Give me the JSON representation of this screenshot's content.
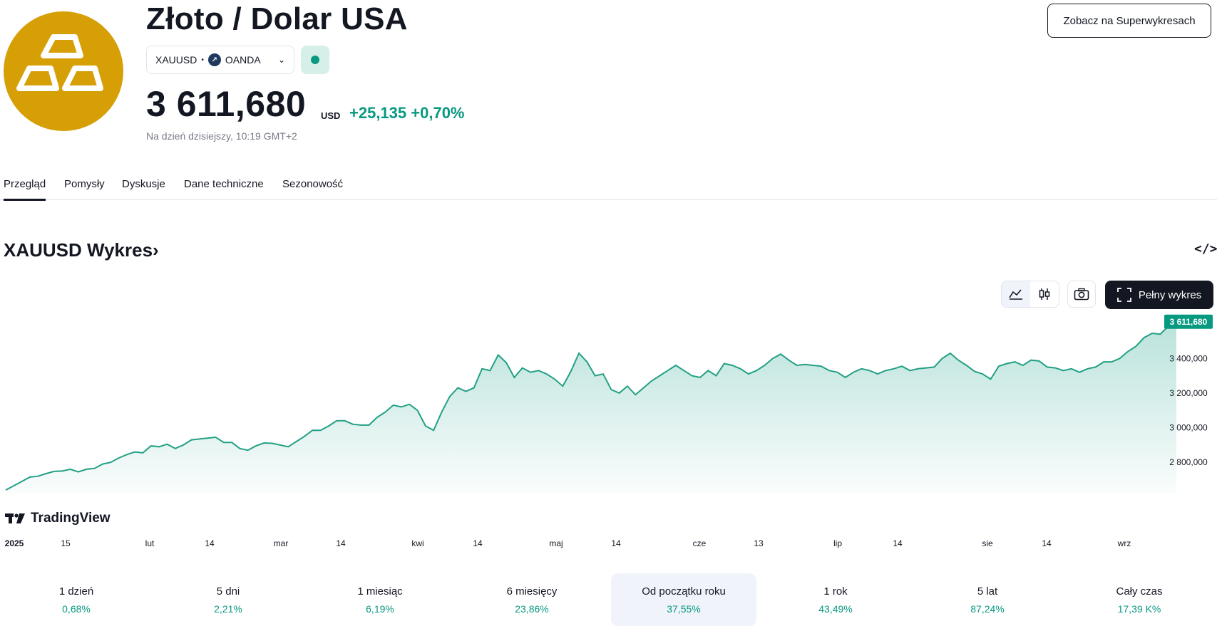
{
  "header": {
    "title": "Złoto / Dolar USA",
    "symbol": "XAUUSD",
    "exchange": "OANDA",
    "price": "3 611,680",
    "currency": "USD",
    "change": "+25,135",
    "change_pct": "+0,70%",
    "as_of": "Na dzień dzisiejszy, 10:19 GMT+2",
    "super_button": "Zobacz na Superwykresach"
  },
  "tabs": [
    {
      "label": "Przegląd",
      "active": true
    },
    {
      "label": "Pomysły",
      "active": false
    },
    {
      "label": "Dyskusje",
      "active": false
    },
    {
      "label": "Dane techniczne",
      "active": false
    },
    {
      "label": "Sezonowość",
      "active": false
    }
  ],
  "chart_section": {
    "title": "XAUUSD Wykres",
    "title_arrow": "›",
    "embed_icon": "</>",
    "full_chart_label": "Pełny wykres",
    "branding": "TradingView"
  },
  "chart_data": {
    "type": "area",
    "series": [
      {
        "values": [
          2640,
          2665,
          2690,
          2715,
          2720,
          2735,
          2748,
          2750,
          2760,
          2745,
          2760,
          2765,
          2790,
          2800,
          2825,
          2845,
          2860,
          2855,
          2895,
          2890,
          2905,
          2880,
          2900,
          2930,
          2935,
          2940,
          2945,
          2915,
          2915,
          2880,
          2870,
          2895,
          2912,
          2910,
          2900,
          2890,
          2920,
          2950,
          2985,
          2985,
          3010,
          3040,
          3040,
          3020,
          3015,
          3015,
          3060,
          3090,
          3130,
          3120,
          3135,
          3100,
          3010,
          2985,
          3090,
          3180,
          3230,
          3210,
          3230,
          3340,
          3330,
          3420,
          3375,
          3290,
          3345,
          3320,
          3330,
          3310,
          3280,
          3240,
          3325,
          3430,
          3380,
          3300,
          3310,
          3220,
          3200,
          3240,
          3190,
          3230,
          3270,
          3300,
          3330,
          3360,
          3330,
          3300,
          3290,
          3330,
          3300,
          3370,
          3360,
          3340,
          3310,
          3330,
          3360,
          3400,
          3425,
          3390,
          3360,
          3365,
          3360,
          3355,
          3330,
          3320,
          3290,
          3320,
          3340,
          3330,
          3310,
          3330,
          3340,
          3355,
          3330,
          3340,
          3345,
          3350,
          3400,
          3430,
          3390,
          3360,
          3325,
          3310,
          3280,
          3355,
          3370,
          3380,
          3360,
          3390,
          3385,
          3350,
          3345,
          3330,
          3340,
          3320,
          3340,
          3350,
          3380,
          3380,
          3400,
          3440,
          3470,
          3520,
          3545,
          3540,
          3585,
          3611.68
        ]
      }
    ],
    "x_ticks": [
      "2025",
      "15",
      "lut",
      "14",
      "mar",
      "14",
      "kwi",
      "14",
      "maj",
      "14",
      "cze",
      "13",
      "lip",
      "14",
      "sie",
      "14",
      "wrz"
    ],
    "y_ticks": [
      "3 400,000",
      "3 200,000",
      "3 000,000",
      "2 800,000"
    ],
    "y_tick_values": [
      3400,
      3200,
      3000,
      2800
    ],
    "ylim": [
      2620,
      3660
    ],
    "last_label": "3 611,680",
    "line_color": "#22a084",
    "fill_color": "#089981"
  },
  "performance": [
    {
      "label": "1 dzień",
      "value": "0,68%",
      "active": false
    },
    {
      "label": "5 dni",
      "value": "2,21%",
      "active": false
    },
    {
      "label": "1 miesiąc",
      "value": "6,19%",
      "active": false
    },
    {
      "label": "6 miesięcy",
      "value": "23,86%",
      "active": false
    },
    {
      "label": "Od początku roku",
      "value": "37,55%",
      "active": true
    },
    {
      "label": "1 rok",
      "value": "43,49%",
      "active": false
    },
    {
      "label": "5 lat",
      "value": "87,24%",
      "active": false
    },
    {
      "label": "Cały czas",
      "value": "17,39 K%",
      "active": false
    }
  ],
  "colors": {
    "accent": "#089981",
    "logo": "#d69f06",
    "dark": "#131722"
  }
}
